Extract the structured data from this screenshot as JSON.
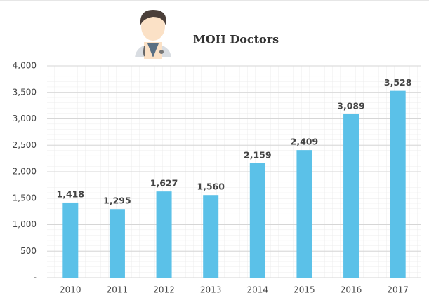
{
  "chart_data": {
    "type": "bar",
    "title": "MOH Doctors",
    "categories": [
      "2010",
      "2011",
      "2012",
      "2013",
      "2014",
      "2015",
      "2016",
      "2017"
    ],
    "values": [
      1418,
      1295,
      1627,
      1560,
      2159,
      2409,
      3089,
      3528
    ],
    "value_labels": [
      "1,418",
      "1,295",
      "1,627",
      "1,560",
      "2,159",
      "2,409",
      "3,089",
      "3,528"
    ],
    "color": "#5bc1e8",
    "ylim": [
      0,
      4000
    ],
    "yticks": [
      {
        "value": 0,
        "label": "-"
      },
      500,
      {
        "value": 1000,
        "label": "1,000"
      },
      {
        "value": 1500,
        "label": "1,500"
      },
      {
        "value": 2000,
        "label": "2,000"
      },
      {
        "value": 2500,
        "label": "2,500"
      },
      {
        "value": 3000,
        "label": "3,000"
      },
      {
        "value": 3500,
        "label": "3,500"
      },
      {
        "value": 4000,
        "label": "4,000"
      }
    ],
    "grid": true
  }
}
